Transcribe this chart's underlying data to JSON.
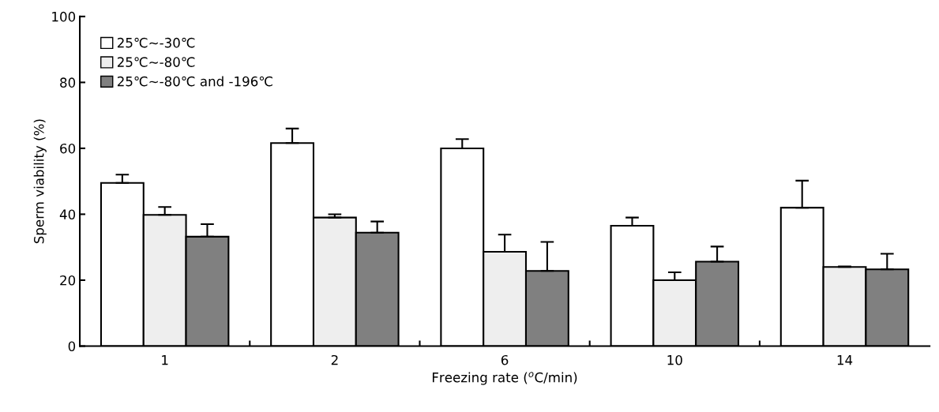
{
  "chart_data": {
    "type": "bar",
    "xlabel": "Freezing rate ($^{o}$C/min)",
    "ylabel": "Sperm viability (%)",
    "categories": [
      "1",
      "2",
      "6",
      "10",
      "14"
    ],
    "series": [
      {
        "name": "25℃~-30℃",
        "color": "#ffffff",
        "values": [
          49.5,
          61.6,
          60,
          36.5,
          42
        ],
        "errors": [
          [
            49.5,
            52
          ],
          [
            61.6,
            66
          ],
          [
            60,
            62.8
          ],
          [
            36.5,
            39
          ],
          [
            42,
            50.2
          ]
        ]
      },
      {
        "name": "25℃~-80℃",
        "color": "#eeeeee",
        "values": [
          39.8,
          39,
          28.6,
          20,
          24
        ],
        "errors": [
          [
            39.8,
            42.2
          ],
          [
            39,
            40
          ],
          [
            28.6,
            33.8
          ],
          [
            20,
            22.4
          ],
          [
            24,
            24.2
          ]
        ]
      },
      {
        "name": "25℃~-80℃ and -196℃",
        "color": "#808080",
        "values": [
          33.2,
          34.4,
          22.8,
          25.6,
          23.3
        ],
        "errors": [
          [
            33.2,
            37
          ],
          [
            34.4,
            37.8
          ],
          [
            22.8,
            31.6
          ],
          [
            25.6,
            30.2
          ],
          [
            23.3,
            28
          ]
        ]
      }
    ],
    "ylim": [
      0,
      100
    ],
    "yticks": [
      0,
      20,
      40,
      60,
      80,
      100
    ],
    "grid": false,
    "legend": "top left"
  }
}
